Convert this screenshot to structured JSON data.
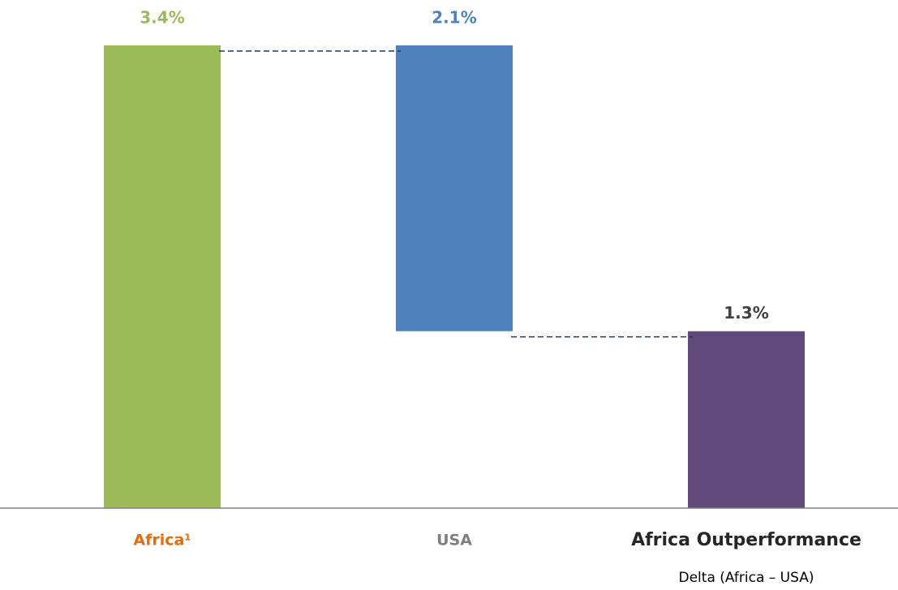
{
  "chart_data": {
    "type": "waterfall",
    "categories": [
      "Africa¹",
      "USA",
      "Africa Outperformance"
    ],
    "values": [
      3.4,
      -2.1,
      1.3
    ],
    "value_labels": [
      "3.4%",
      "2.1%",
      "1.3%"
    ],
    "measures": [
      "absolute",
      "relative",
      "total"
    ],
    "colors": [
      "#9bbb59",
      "#4f81bd",
      "#604a7b"
    ],
    "value_label_colors": [
      "#9bbb59",
      "#4f81bd",
      "#404040"
    ],
    "category_label_colors": [
      "#e46c0a",
      "#7f7f7f",
      "#262626"
    ],
    "annotation": "Delta (Africa – USA)",
    "ylim": [
      0,
      3.4
    ],
    "grid": false
  }
}
